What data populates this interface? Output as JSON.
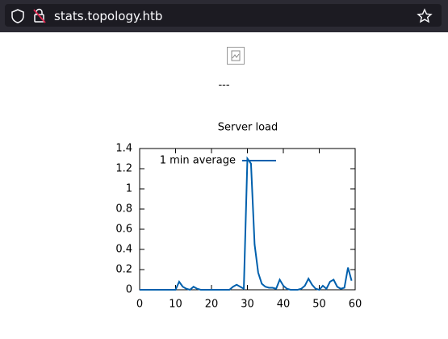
{
  "browser": {
    "url": "stats.topology.htb"
  },
  "page": {
    "separator": "---"
  },
  "chart_data": {
    "type": "line",
    "title": "Server load",
    "x": [
      0,
      1,
      2,
      3,
      4,
      5,
      6,
      7,
      8,
      9,
      10,
      11,
      12,
      13,
      14,
      15,
      16,
      17,
      18,
      19,
      20,
      21,
      22,
      23,
      24,
      25,
      26,
      27,
      28,
      29,
      30,
      31,
      32,
      33,
      34,
      35,
      36,
      37,
      38,
      39,
      40,
      41,
      42,
      43,
      44,
      45,
      46,
      47,
      48,
      49,
      50,
      51,
      52,
      53,
      54,
      55,
      56,
      57,
      58,
      59
    ],
    "series": [
      {
        "name": "1 min average",
        "color": "#0060ad",
        "values": [
          0,
          0,
          0,
          0,
          0,
          0,
          0,
          0,
          0,
          0,
          0,
          0.08,
          0.03,
          0.01,
          0,
          0.03,
          0.01,
          0,
          0,
          0,
          0,
          0,
          0,
          0,
          0,
          0,
          0.03,
          0.05,
          0.03,
          0.01,
          1.3,
          1.25,
          0.45,
          0.17,
          0.06,
          0.03,
          0.02,
          0.02,
          0.01,
          0.1,
          0.04,
          0.01,
          0,
          0,
          0,
          0.01,
          0.04,
          0.11,
          0.05,
          0.01,
          0,
          0.04,
          0.01,
          0.08,
          0.1,
          0.03,
          0.01,
          0.02,
          0.22,
          0.09
        ]
      }
    ],
    "xlim": [
      0,
      60
    ],
    "xticks": [
      0,
      10,
      20,
      30,
      40,
      50,
      60
    ],
    "ylim": [
      0,
      1.4
    ],
    "yticks": [
      0,
      0.2,
      0.4,
      0.6,
      0.8,
      1,
      1.2,
      1.4
    ]
  }
}
